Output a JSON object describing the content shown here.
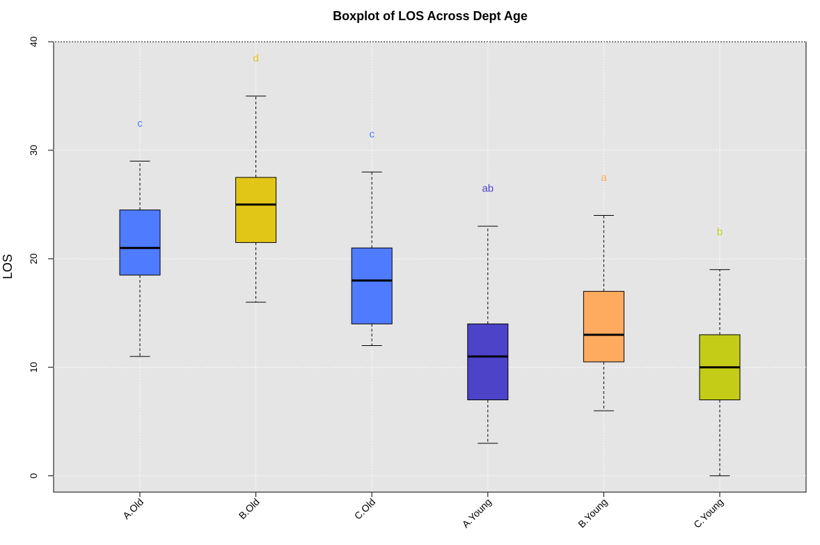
{
  "chart_data": {
    "type": "boxplot",
    "title": "Boxplot of LOS Across Dept Age",
    "xlabel": "",
    "ylabel": "LOS",
    "ylim": [
      -1.5,
      40
    ],
    "yticks": [
      0,
      10,
      20,
      30,
      40
    ],
    "grid": true,
    "background": "#e5e5e5",
    "categories": [
      "A.Old",
      "B.Old",
      "C.Old",
      "A.Young",
      "B.Young",
      "C.Young"
    ],
    "boxes": [
      {
        "category": "A.Old",
        "min": 11,
        "q1": 18.5,
        "median": 21,
        "q3": 24.5,
        "max": 29,
        "color": "#4f7bff",
        "letter": "c",
        "letter_y": 32.5
      },
      {
        "category": "B.Old",
        "min": 16,
        "q1": 21.5,
        "median": 25,
        "q3": 27.5,
        "max": 35,
        "color": "#e2c617",
        "letter": "d",
        "letter_y": 38.5
      },
      {
        "category": "C.Old",
        "min": 12,
        "q1": 14,
        "median": 18,
        "q3": 21,
        "max": 28,
        "color": "#4f7bff",
        "letter": "c",
        "letter_y": 31.5
      },
      {
        "category": "A.Young",
        "min": 3,
        "q1": 7,
        "median": 11,
        "q3": 14,
        "max": 23,
        "color": "#4c43c9",
        "letter": "ab",
        "letter_y": 26.5
      },
      {
        "category": "B.Young",
        "min": 6,
        "q1": 10.5,
        "median": 13,
        "q3": 17,
        "max": 24,
        "color": "#ffab5f",
        "letter": "a",
        "letter_y": 27.5
      },
      {
        "category": "C.Young",
        "min": 0,
        "q1": 7,
        "median": 10,
        "q3": 13,
        "max": 19,
        "color": "#c4cc18",
        "letter": "b",
        "letter_y": 22.5
      }
    ]
  }
}
